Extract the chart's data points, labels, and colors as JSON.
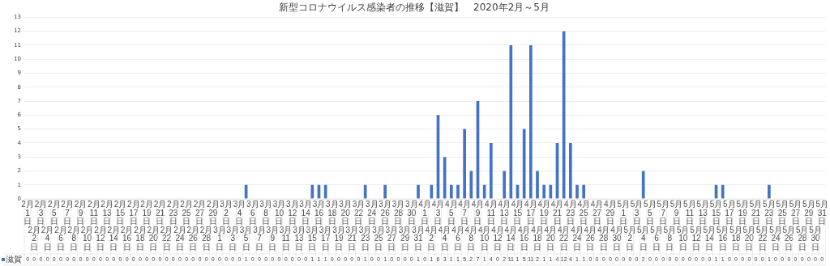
{
  "chart_data": {
    "type": "bar",
    "title": "新型コロナウイルス感染者の推移【滋賀】　2020年2月～5月",
    "categories": [
      "2月1日",
      "2月2日",
      "2月3日",
      "2月4日",
      "2月5日",
      "2月6日",
      "2月7日",
      "2月8日",
      "2月9日",
      "2月10日",
      "2月11日",
      "2月12日",
      "2月13日",
      "2月14日",
      "2月15日",
      "2月16日",
      "2月17日",
      "2月18日",
      "2月19日",
      "2月20日",
      "2月21日",
      "2月22日",
      "2月23日",
      "2月24日",
      "2月25日",
      "2月26日",
      "2月27日",
      "2月28日",
      "2月29日",
      "3月1日",
      "3月2日",
      "3月3日",
      "3月4日",
      "3月5日",
      "3月6日",
      "3月7日",
      "3月8日",
      "3月9日",
      "3月10日",
      "3月11日",
      "3月12日",
      "3月13日",
      "3月14日",
      "3月15日",
      "3月16日",
      "3月17日",
      "3月18日",
      "3月19日",
      "3月20日",
      "3月21日",
      "3月22日",
      "3月23日",
      "3月24日",
      "3月25日",
      "3月26日",
      "3月27日",
      "3月28日",
      "3月29日",
      "3月30日",
      "3月31日",
      "4月1日",
      "4月2日",
      "4月3日",
      "4月4日",
      "4月5日",
      "4月6日",
      "4月7日",
      "4月8日",
      "4月9日",
      "4月10日",
      "4月11日",
      "4月12日",
      "4月13日",
      "4月14日",
      "4月15日",
      "4月16日",
      "4月17日",
      "4月18日",
      "4月19日",
      "4月20日",
      "4月21日",
      "4月22日",
      "4月23日",
      "4月24日",
      "4月25日",
      "4月26日",
      "4月27日",
      "4月28日",
      "4月29日",
      "4月30日",
      "5月1日",
      "5月2日",
      "5月3日",
      "5月4日",
      "5月5日",
      "5月6日",
      "5月7日",
      "5月8日",
      "5月9日",
      "5月10日",
      "5月11日",
      "5月12日",
      "5月13日",
      "5月14日",
      "5月15日",
      "5月16日",
      "5月17日",
      "5月18日",
      "5月19日",
      "5月20日",
      "5月21日",
      "5月22日",
      "5月23日",
      "5月24日",
      "5月25日",
      "5月26日",
      "5月27日",
      "5月28日",
      "5月29日",
      "5月30日",
      "5月31日"
    ],
    "series": [
      {
        "name": "滋賀",
        "color": "#4472c4",
        "values": [
          0,
          0,
          0,
          0,
          0,
          0,
          0,
          0,
          0,
          0,
          0,
          0,
          0,
          0,
          0,
          0,
          0,
          0,
          0,
          0,
          0,
          0,
          0,
          0,
          0,
          0,
          0,
          0,
          0,
          0,
          0,
          0,
          0,
          1,
          0,
          0,
          0,
          0,
          0,
          0,
          0,
          0,
          0,
          1,
          1,
          1,
          0,
          0,
          0,
          0,
          0,
          1,
          0,
          0,
          1,
          0,
          0,
          0,
          0,
          1,
          0,
          1,
          6,
          3,
          1,
          1,
          5,
          2,
          7,
          1,
          4,
          0,
          2,
          11,
          1,
          5,
          11,
          2,
          1,
          1,
          4,
          12,
          4,
          1,
          1,
          0,
          0,
          0,
          0,
          0,
          0,
          0,
          0,
          2,
          0,
          0,
          0,
          0,
          0,
          0,
          0,
          0,
          0,
          0,
          1,
          1,
          0,
          0,
          0,
          0,
          0,
          0,
          1,
          0,
          0,
          0,
          0,
          0,
          0,
          0,
          0
        ]
      }
    ],
    "ylim": [
      0,
      13
    ],
    "yticks": [
      0,
      1,
      2,
      3,
      4,
      5,
      6,
      7,
      8,
      9,
      10,
      11,
      12,
      13
    ],
    "grid": "y",
    "data_labels": true,
    "legend": "bottom"
  }
}
